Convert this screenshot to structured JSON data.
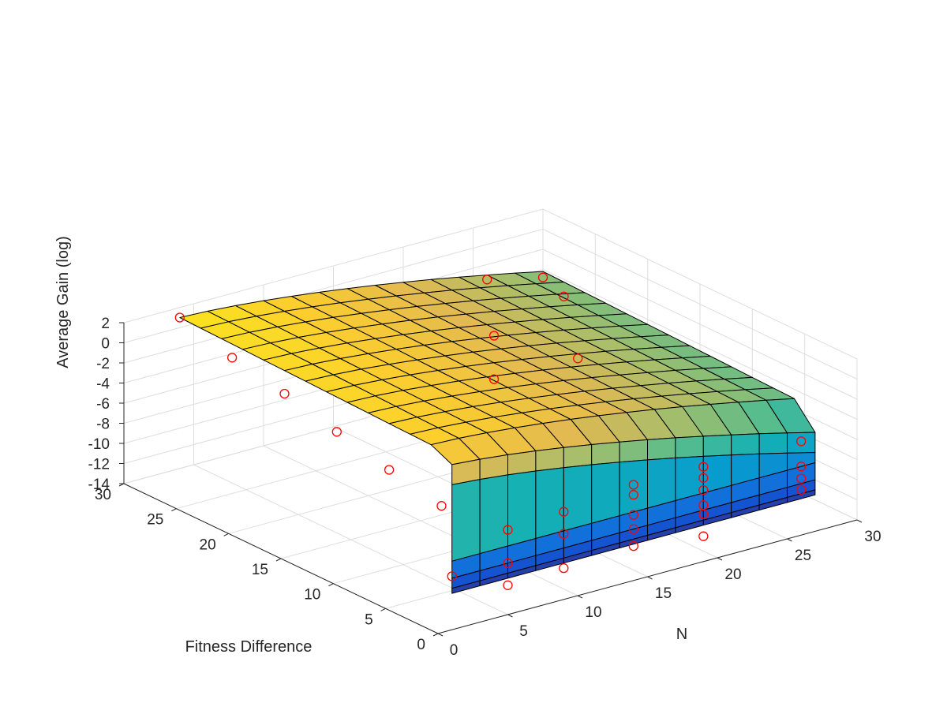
{
  "chart_data": {
    "type": "surface",
    "title": "",
    "xlabel": "N",
    "ylabel": "Fitness Difference",
    "zlabel": "Average Gain (log)",
    "xlim": [
      0,
      30
    ],
    "ylim": [
      0,
      30
    ],
    "zlim": [
      -14,
      2
    ],
    "x_ticks": [
      "0",
      "5",
      "10",
      "15",
      "20",
      "25",
      "30"
    ],
    "y_ticks": [
      "0",
      "5",
      "10",
      "15",
      "20",
      "25",
      "30"
    ],
    "z_ticks": [
      "-14",
      "-12",
      "-10",
      "-8",
      "-6",
      "-4",
      "-2",
      "0",
      "2"
    ],
    "grid": true,
    "colormap": "parula",
    "surface": {
      "n_range": [
        4,
        30
      ],
      "fitness_range": [
        4,
        30
      ],
      "plateau": "log gain near 1 at N=4 decreasing toward about -4 at N=30",
      "cliff_fitness": 4,
      "cliff_bottom": -13.5
    },
    "markers": {
      "color": "#ff0000",
      "style": "open circle",
      "points": [
        {
          "n": 4,
          "f": 30,
          "z": 1.0
        },
        {
          "n": 4,
          "f": 25,
          "z": -0.5
        },
        {
          "n": 4,
          "f": 20,
          "z": -1.6
        },
        {
          "n": 4,
          "f": 15,
          "z": -2.9
        },
        {
          "n": 4,
          "f": 10,
          "z": -4.2
        },
        {
          "n": 4,
          "f": 5,
          "z": -5.3
        },
        {
          "n": 26,
          "f": 30,
          "z": -3.5
        },
        {
          "n": 22,
          "f": 24,
          "z": -4.6
        },
        {
          "n": 19,
          "f": 20,
          "z": -5.8
        },
        {
          "n": 30,
          "f": 30,
          "z": -4.8
        },
        {
          "n": 30,
          "f": 28,
          "z": -5.7
        },
        {
          "n": 25,
          "f": 20,
          "z": -6.0
        },
        {
          "n": 8,
          "f": 4,
          "z": -8.7
        },
        {
          "n": 12,
          "f": 4,
          "z": -8.4
        },
        {
          "n": 17,
          "f": 4,
          "z": -7.6
        },
        {
          "n": 22,
          "f": 4,
          "z": -7.7
        },
        {
          "n": 29,
          "f": 4,
          "z": -7.8
        },
        {
          "n": 17,
          "f": 4,
          "z": -8.6
        },
        {
          "n": 22,
          "f": 4,
          "z": -8.8
        },
        {
          "n": 12,
          "f": 4,
          "z": -10.6
        },
        {
          "n": 17,
          "f": 4,
          "z": -10.6
        },
        {
          "n": 22,
          "f": 4,
          "z": -10.0
        },
        {
          "n": 29,
          "f": 4,
          "z": -10.3
        },
        {
          "n": 4,
          "f": 4,
          "z": -11.8
        },
        {
          "n": 8,
          "f": 4,
          "z": -12.0
        },
        {
          "n": 17,
          "f": 4,
          "z": -12.0
        },
        {
          "n": 22,
          "f": 4,
          "z": -11.5
        },
        {
          "n": 29,
          "f": 4,
          "z": -11.5
        },
        {
          "n": 22,
          "f": 4,
          "z": -12.4
        },
        {
          "n": 29,
          "f": 4,
          "z": -12.6
        },
        {
          "n": 8,
          "f": 4,
          "z": -14.2
        },
        {
          "n": 12,
          "f": 4,
          "z": -14.0
        },
        {
          "n": 17,
          "f": 4,
          "z": -13.7
        },
        {
          "n": 22,
          "f": 4,
          "z": -14.6
        }
      ]
    }
  }
}
